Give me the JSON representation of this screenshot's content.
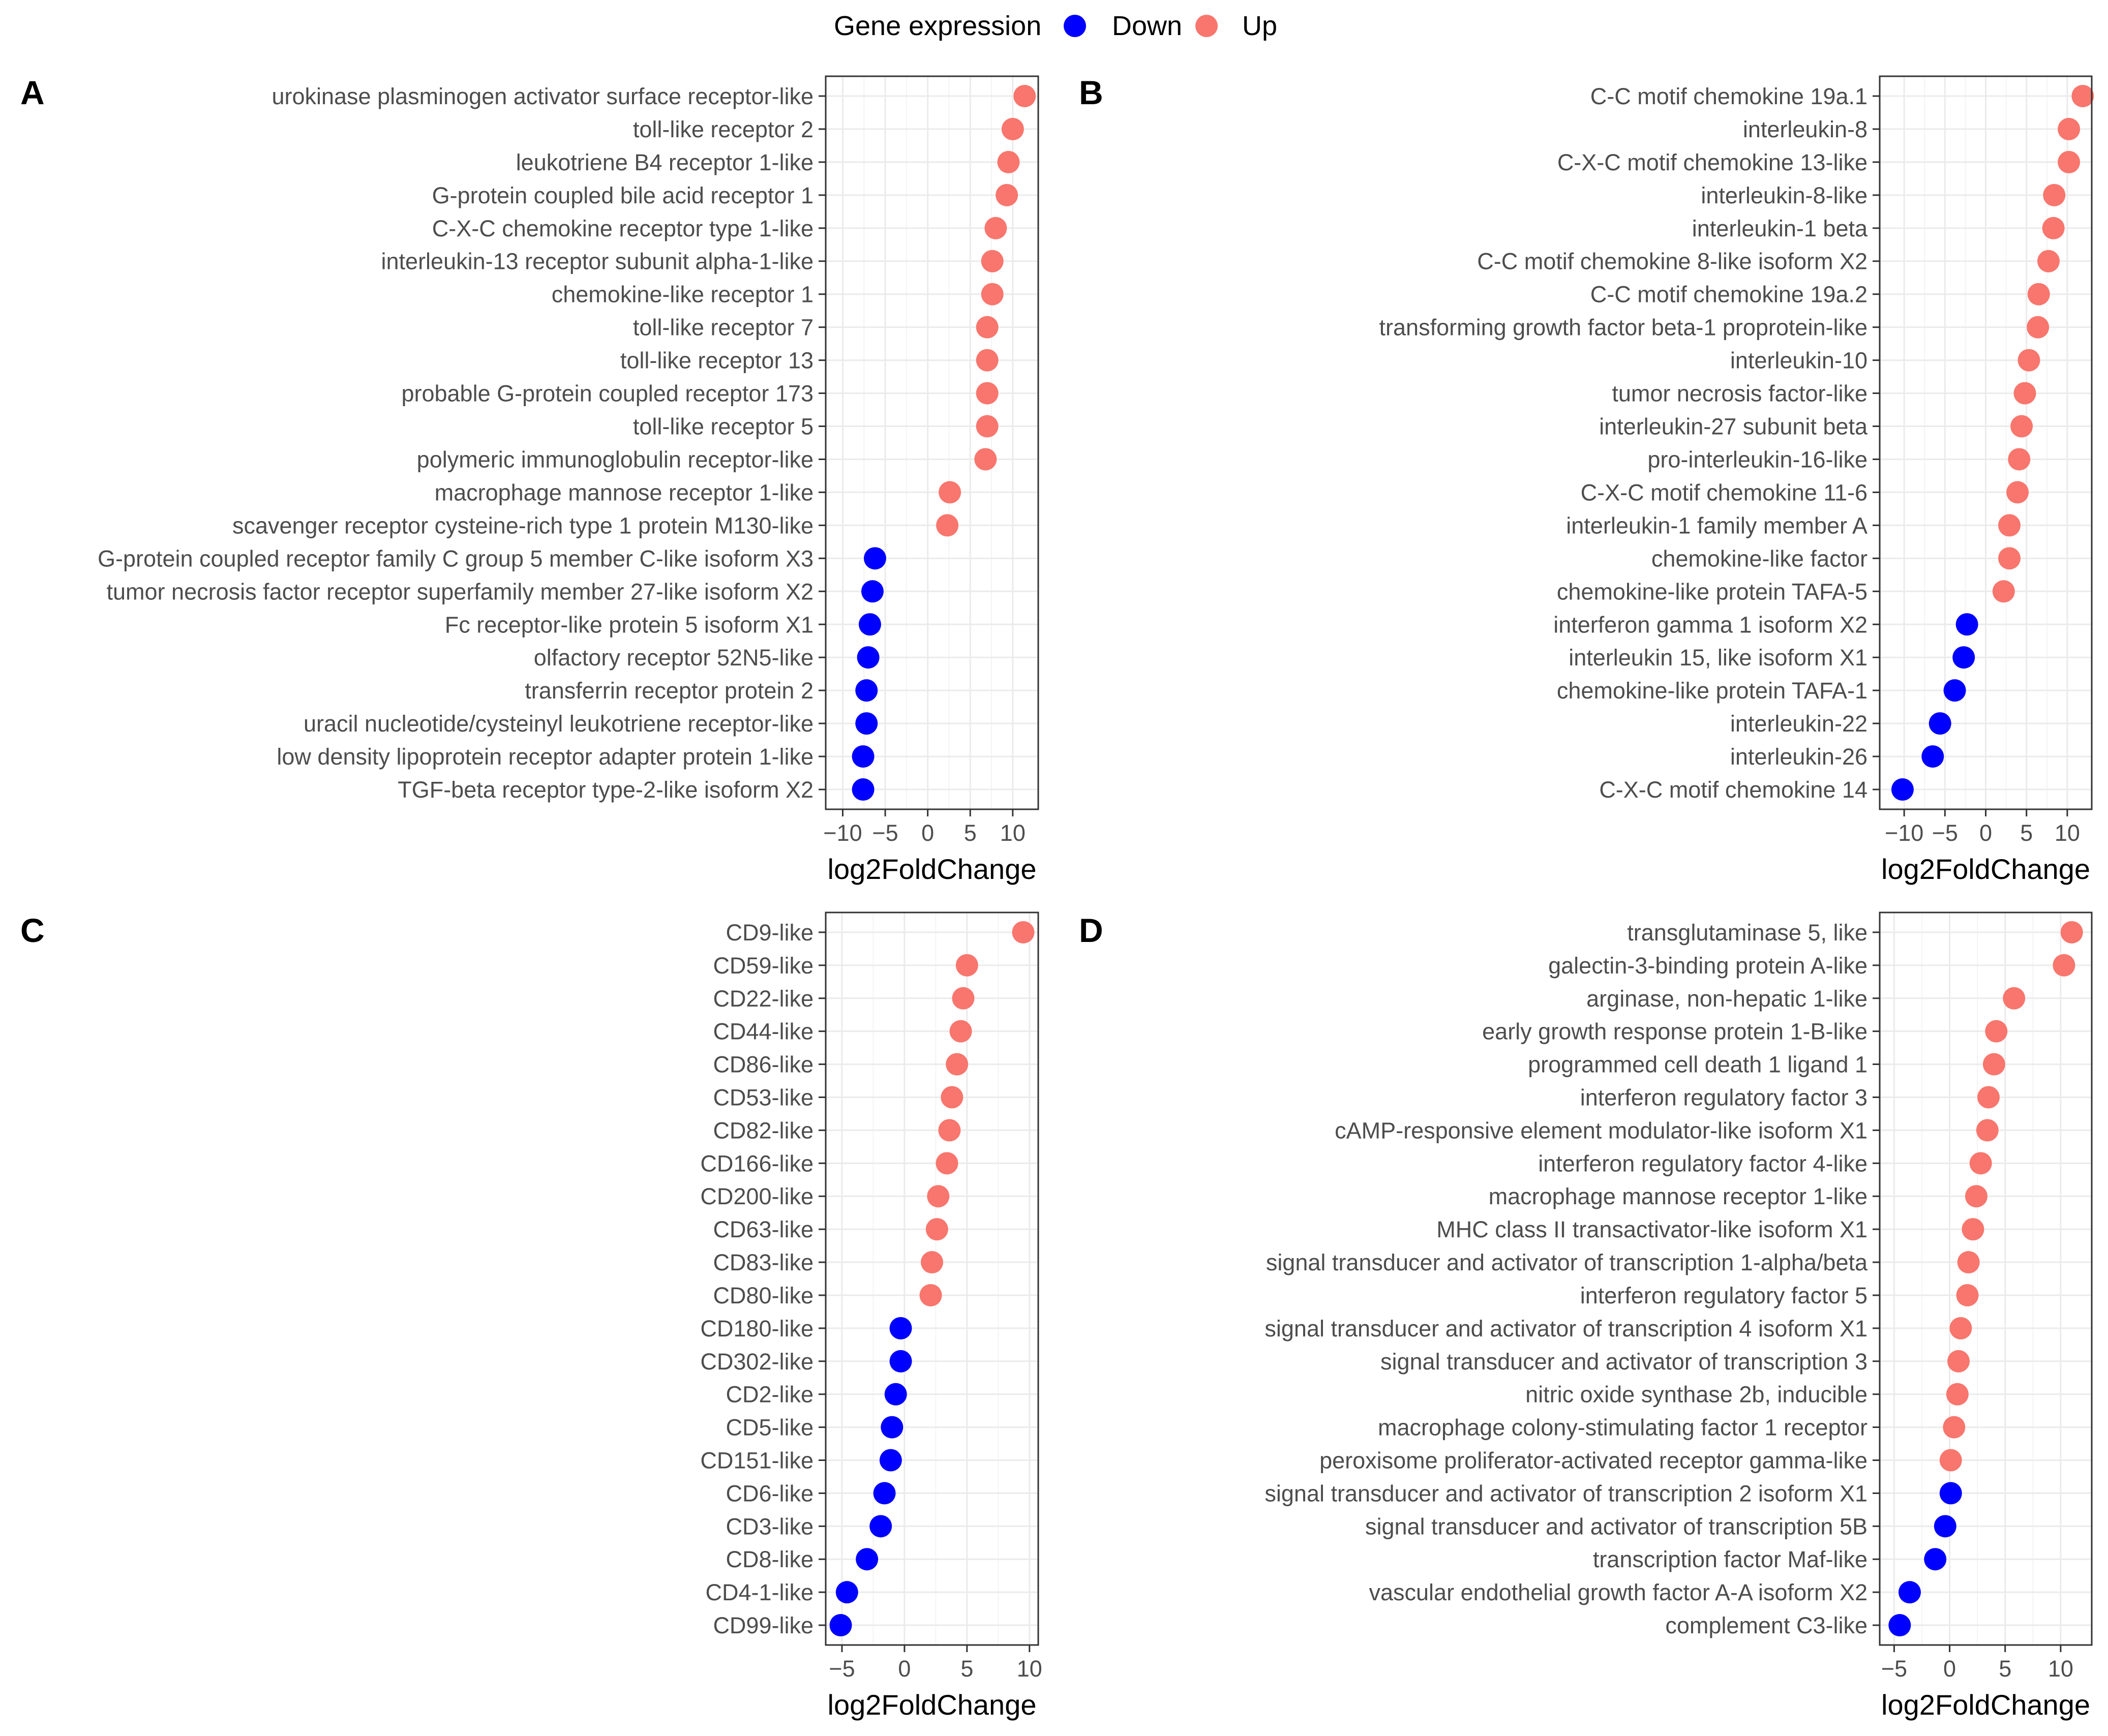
{
  "legend": {
    "title": "Gene expression",
    "items": [
      {
        "label": "Down",
        "color": "#0000FF"
      },
      {
        "label": "Up",
        "color": "#F8766D"
      }
    ]
  },
  "colors": {
    "Down": "#0000FF",
    "Up": "#F8766D"
  },
  "chart_data": [
    {
      "panel": "A",
      "type": "scatter",
      "xlabel": "log2FoldChange",
      "xlim": [
        -12,
        13
      ],
      "xticks": [
        -10,
        -5,
        0,
        5,
        10
      ],
      "xtick_labels": [
        "−10",
        "−5",
        "0",
        "5",
        "10"
      ],
      "categories": [
        "urokinase plasminogen activator surface receptor-like",
        "toll-like receptor 2",
        "leukotriene B4 receptor 1-like",
        "G-protein coupled bile acid receptor 1",
        "C-X-C chemokine receptor type 1-like",
        "interleukin-13 receptor subunit alpha-1-like",
        "chemokine-like receptor 1",
        "toll-like receptor 7",
        "toll-like receptor 13",
        "probable G-protein coupled receptor 173",
        "toll-like receptor 5",
        "polymeric immunoglobulin receptor-like",
        "macrophage mannose receptor 1-like",
        "scavenger receptor cysteine-rich type 1 protein M130-like",
        "G-protein coupled receptor family C group 5 member C-like isoform X3",
        "tumor necrosis factor receptor superfamily member 27-like isoform X2",
        "Fc receptor-like protein 5 isoform X1",
        "olfactory receptor 52N5-like",
        "transferrin receptor protein 2",
        "uracil nucleotide/cysteinyl leukotriene receptor-like",
        "low density lipoprotein receptor adapter protein 1-like",
        "TGF-beta receptor type-2-like isoform X2"
      ],
      "values": [
        11.4,
        10.0,
        9.5,
        9.3,
        8.0,
        7.6,
        7.6,
        7.0,
        7.0,
        7.0,
        7.0,
        6.8,
        2.6,
        2.3,
        -6.2,
        -6.5,
        -6.8,
        -7.0,
        -7.2,
        -7.2,
        -7.6,
        -7.6
      ],
      "expression": [
        "Up",
        "Up",
        "Up",
        "Up",
        "Up",
        "Up",
        "Up",
        "Up",
        "Up",
        "Up",
        "Up",
        "Up",
        "Up",
        "Up",
        "Down",
        "Down",
        "Down",
        "Down",
        "Down",
        "Down",
        "Down",
        "Down"
      ]
    },
    {
      "panel": "B",
      "type": "scatter",
      "xlabel": "log2FoldChange",
      "xlim": [
        -13,
        13
      ],
      "xticks": [
        -10,
        -5,
        0,
        5,
        10
      ],
      "xtick_labels": [
        "−10",
        "−5",
        "0",
        "5",
        "10"
      ],
      "categories": [
        "C-C motif chemokine 19a.1",
        "interleukin-8",
        "C-X-C motif chemokine 13-like",
        "interleukin-8-like",
        "interleukin-1 beta",
        "C-C motif chemokine 8-like isoform X2",
        "C-C motif chemokine 19a.2",
        "transforming growth factor beta-1 proprotein-like",
        "interleukin-10",
        "tumor necrosis factor-like",
        "interleukin-27 subunit beta",
        "pro-interleukin-16-like",
        "C-X-C motif chemokine 11-6",
        "interleukin-1 family member A",
        "chemokine-like factor",
        "chemokine-like protein TAFA-5",
        "interferon gamma 1 isoform X2",
        "interleukin 15, like isoform X1",
        "chemokine-like protein TAFA-1",
        "interleukin-22",
        "interleukin-26",
        "C-X-C motif chemokine 14"
      ],
      "values": [
        11.9,
        10.2,
        10.2,
        8.4,
        8.3,
        7.7,
        6.5,
        6.4,
        5.3,
        4.8,
        4.4,
        4.1,
        3.9,
        2.9,
        2.9,
        2.2,
        -2.3,
        -2.7,
        -3.8,
        -5.6,
        -6.5,
        -10.2
      ],
      "expression": [
        "Up",
        "Up",
        "Up",
        "Up",
        "Up",
        "Up",
        "Up",
        "Up",
        "Up",
        "Up",
        "Up",
        "Up",
        "Up",
        "Up",
        "Up",
        "Up",
        "Down",
        "Down",
        "Down",
        "Down",
        "Down",
        "Down"
      ]
    },
    {
      "panel": "C",
      "type": "scatter",
      "xlabel": "log2FoldChange",
      "xlim": [
        -6.3,
        10.7
      ],
      "xticks": [
        -5,
        0,
        5,
        10
      ],
      "xtick_labels": [
        "−5",
        "0",
        "5",
        "10"
      ],
      "categories": [
        "CD9-like",
        "CD59-like",
        "CD22-like",
        "CD44-like",
        "CD86-like",
        "CD53-like",
        "CD82-like",
        "CD166-like",
        "CD200-like",
        "CD63-like",
        "CD83-like",
        "CD80-like",
        "CD180-like",
        "CD302-like",
        "CD2-like",
        "CD5-like",
        "CD151-like",
        "CD6-like",
        "CD3-like",
        "CD8-like",
        "CD4-1-like",
        "CD99-like"
      ],
      "values": [
        9.5,
        5.0,
        4.7,
        4.5,
        4.2,
        3.8,
        3.6,
        3.4,
        2.7,
        2.6,
        2.2,
        2.1,
        -0.3,
        -0.3,
        -0.7,
        -1.0,
        -1.1,
        -1.6,
        -1.9,
        -3.0,
        -4.6,
        -5.1
      ],
      "expression": [
        "Up",
        "Up",
        "Up",
        "Up",
        "Up",
        "Up",
        "Up",
        "Up",
        "Up",
        "Up",
        "Up",
        "Up",
        "Down",
        "Down",
        "Down",
        "Down",
        "Down",
        "Down",
        "Down",
        "Down",
        "Down",
        "Down"
      ]
    },
    {
      "panel": "D",
      "type": "scatter",
      "xlabel": "log2FoldChange",
      "xlim": [
        -6.3,
        12.8
      ],
      "xticks": [
        -5,
        0,
        5,
        10
      ],
      "xtick_labels": [
        "−5",
        "0",
        "5",
        "10"
      ],
      "categories": [
        "transglutaminase 5, like",
        "galectin-3-binding protein A-like",
        "arginase, non-hepatic 1-like",
        "early growth response protein 1-B-like",
        "programmed cell death 1 ligand 1",
        "interferon regulatory factor 3",
        "cAMP-responsive element modulator-like isoform X1",
        "interferon regulatory factor 4-like",
        "macrophage mannose receptor 1-like",
        "MHC class II transactivator-like isoform X1",
        "signal transducer and activator of transcription 1-alpha/beta",
        "interferon regulatory factor 5",
        "signal transducer and activator of transcription 4 isoform X1",
        "signal transducer and activator of transcription 3",
        "nitric oxide synthase 2b, inducible",
        "macrophage colony-stimulating factor 1 receptor",
        "peroxisome proliferator-activated receptor gamma-like",
        "signal transducer and activator of transcription 2 isoform X1",
        "signal transducer and activator of transcription 5B",
        "transcription factor Maf-like",
        "vascular endothelial growth factor A-A isoform X2",
        "complement C3-like"
      ],
      "values": [
        11.0,
        10.3,
        5.8,
        4.2,
        4.0,
        3.5,
        3.4,
        2.8,
        2.4,
        2.1,
        1.7,
        1.6,
        1.0,
        0.8,
        0.7,
        0.4,
        0.1,
        0.1,
        -0.4,
        -1.3,
        -3.6,
        -4.5
      ],
      "expression": [
        "Up",
        "Up",
        "Up",
        "Up",
        "Up",
        "Up",
        "Up",
        "Up",
        "Up",
        "Up",
        "Up",
        "Up",
        "Up",
        "Up",
        "Up",
        "Up",
        "Up",
        "Down",
        "Down",
        "Down",
        "Down",
        "Down"
      ]
    }
  ]
}
